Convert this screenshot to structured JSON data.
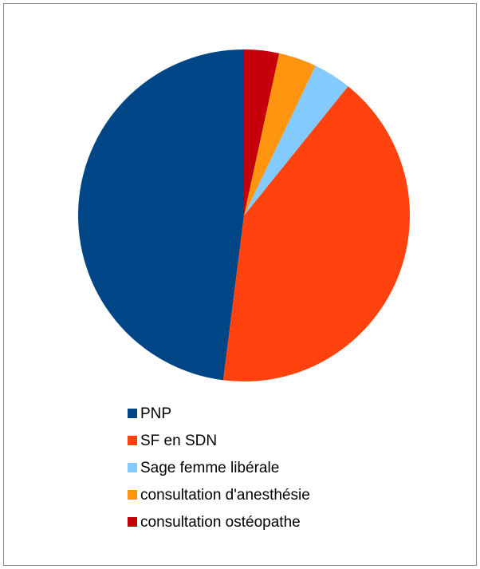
{
  "chart_data": {
    "type": "pie",
    "categories": [
      "PNP",
      "SF en SDN",
      "Sage femme libérale",
      "consultation d'anesthésie",
      "consultation ostéopathe"
    ],
    "values": [
      48,
      41.2,
      3.7,
      3.7,
      3.4
    ],
    "colors": [
      "#004586",
      "#ff420e",
      "#83caff",
      "#ff950e",
      "#c5000b"
    ]
  }
}
